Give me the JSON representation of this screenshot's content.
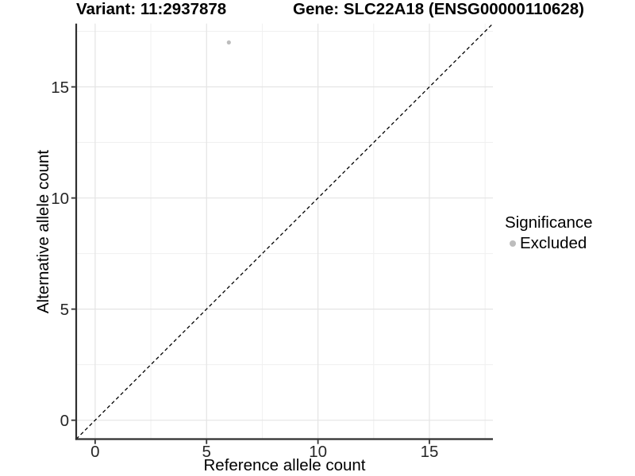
{
  "titles": {
    "variant": "Variant: 11:2937878",
    "gene": "Gene: SLC22A18 (ENSG00000110628)"
  },
  "axes": {
    "x_label": "Reference allele count",
    "y_label": "Alternative allele count"
  },
  "legend": {
    "title": "Significance",
    "items": [
      {
        "label": "Excluded",
        "color": "#bdbdbd"
      }
    ]
  },
  "chart_data": {
    "type": "scatter",
    "title": "Variant: 11:2937878 | Gene: SLC22A18 (ENSG00000110628)",
    "xlabel": "Reference allele count",
    "ylabel": "Alternative allele count",
    "xlim": [
      -0.85,
      17.85
    ],
    "ylim": [
      -0.85,
      17.85
    ],
    "x_major_ticks": [
      0,
      5,
      10,
      15
    ],
    "y_major_ticks": [
      0,
      5,
      10,
      15
    ],
    "x_minor_ticks": [
      2.5,
      7.5,
      12.5,
      17.5
    ],
    "y_minor_ticks": [
      2.5,
      7.5,
      12.5,
      17.5
    ],
    "grid": "major and minor, light gray on white",
    "legend_position": "right",
    "series": [
      {
        "name": "Excluded",
        "marker_color": "#bdbdbd",
        "points": [
          {
            "x": 6,
            "y": 17
          }
        ]
      }
    ],
    "reference_line": {
      "kind": "identity y=x",
      "style": "dashed",
      "color": "#000000",
      "x_start": -0.85,
      "x_end": 17.85
    },
    "style": {
      "major_grid_color": "#e4e4e4",
      "minor_grid_color": "#f0f0f0",
      "axis_line_color": "#2f2f2f",
      "tick_color": "#333333",
      "tick_label_color": "#262626",
      "point_radius": 2.6,
      "background": "#ffffff"
    }
  }
}
